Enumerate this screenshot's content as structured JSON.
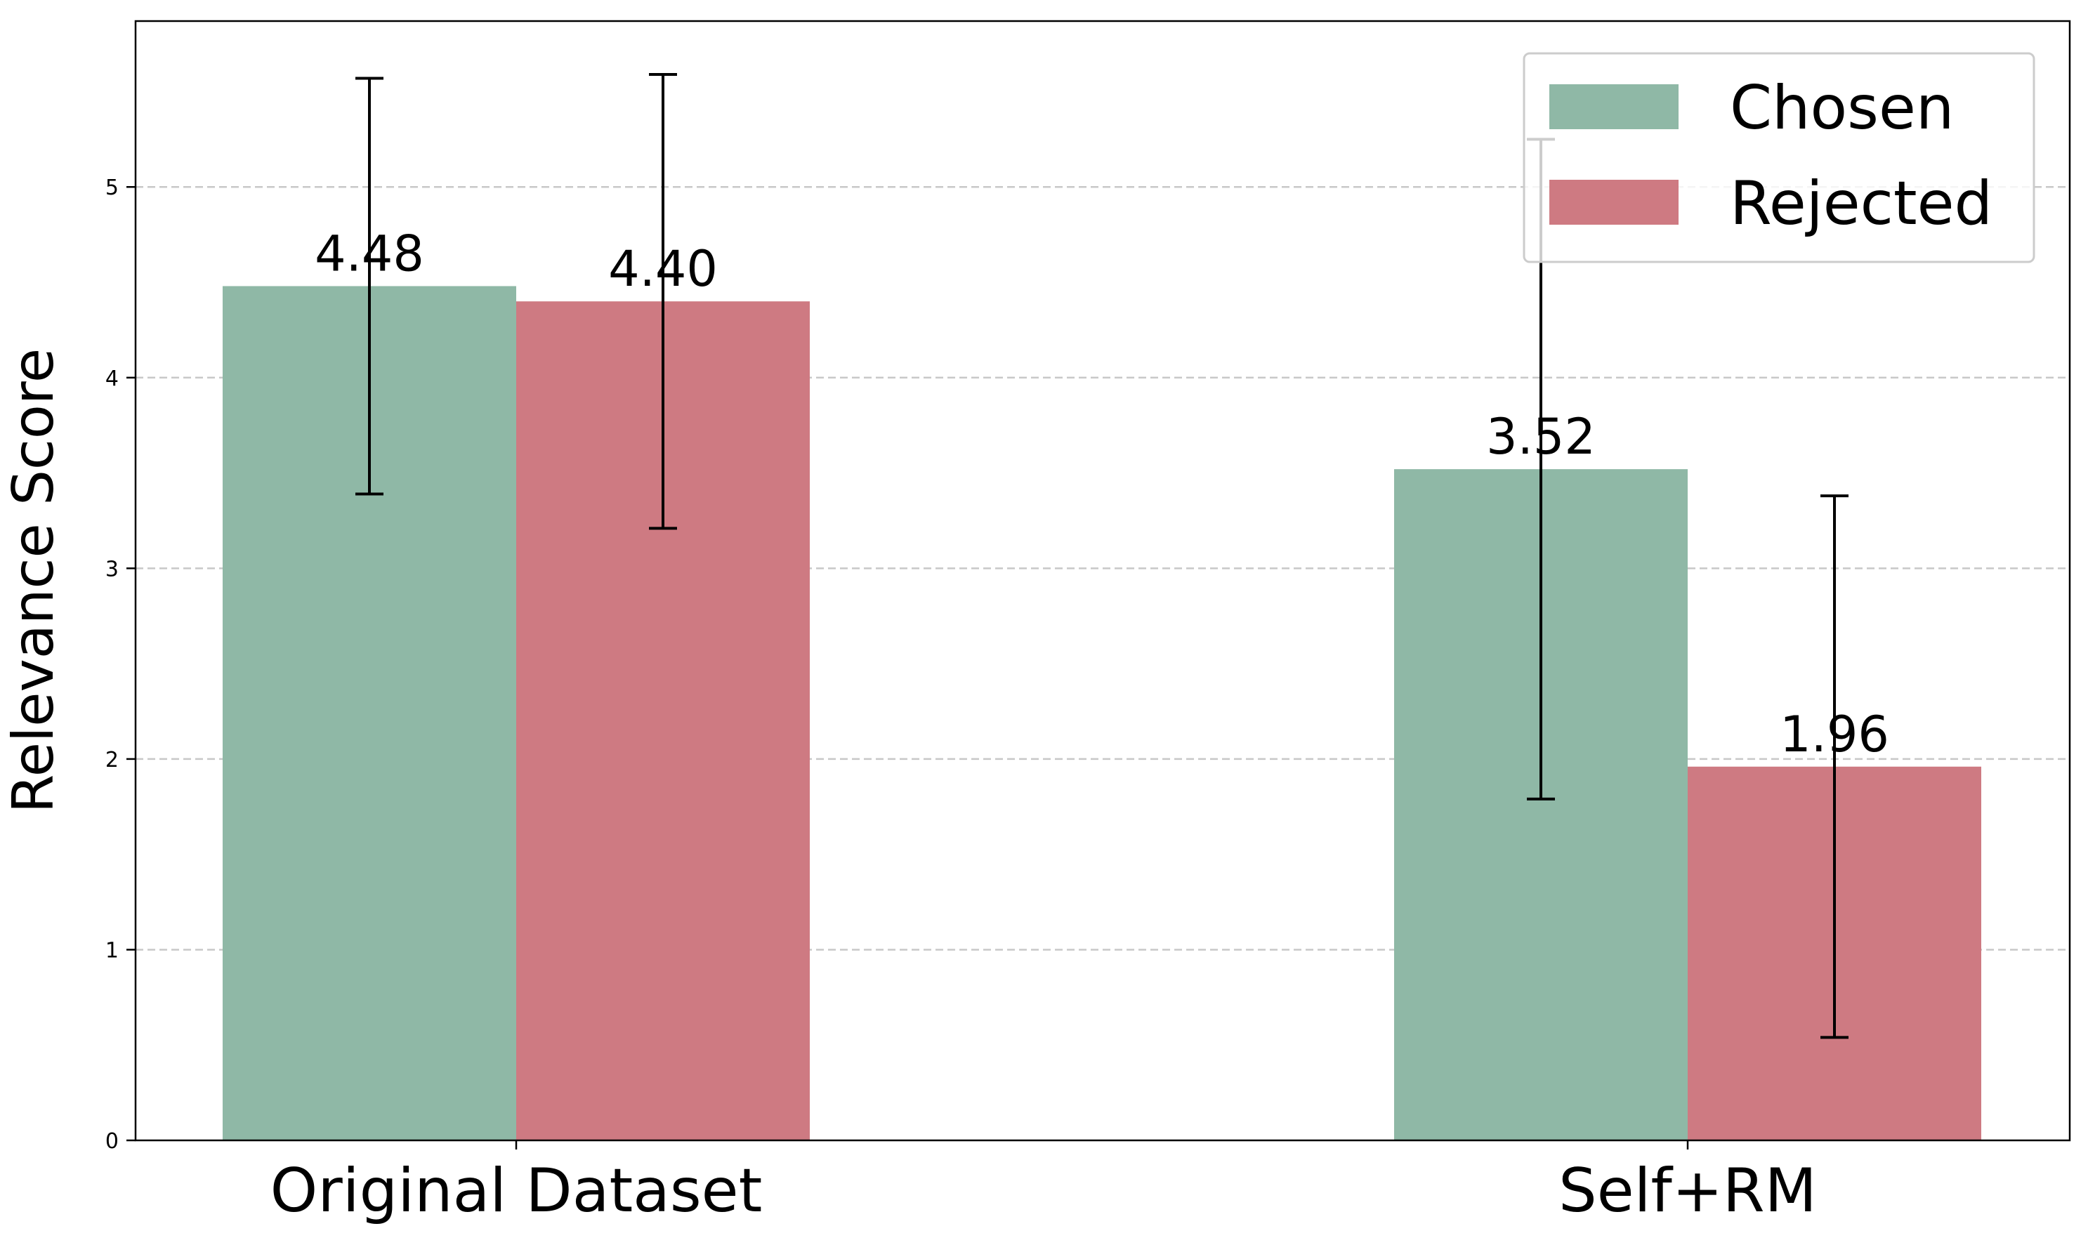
{
  "chart_data": {
    "type": "bar",
    "title": "",
    "xlabel": "",
    "ylabel": "Relevance Score",
    "categories": [
      "Original Dataset",
      "Self+RM"
    ],
    "series": [
      {
        "name": "Chosen",
        "color": "#8fb8a6",
        "values": [
          4.48,
          3.52
        ],
        "value_labels": [
          "4.48",
          "3.52"
        ],
        "error_low": [
          3.39,
          1.79
        ],
        "error_high": [
          5.57,
          5.25
        ]
      },
      {
        "name": "Rejected",
        "color": "#ce7a82",
        "values": [
          4.4,
          1.96
        ],
        "value_labels": [
          "4.40",
          "1.96"
        ],
        "error_low": [
          3.21,
          0.54
        ],
        "error_high": [
          5.59,
          3.38
        ]
      }
    ],
    "ylim": [
      0,
      5.87
    ],
    "yticks": [
      "0",
      "1",
      "2",
      "3",
      "4",
      "5"
    ],
    "grid": "horizontal dashed",
    "legend_position": "top-right"
  }
}
